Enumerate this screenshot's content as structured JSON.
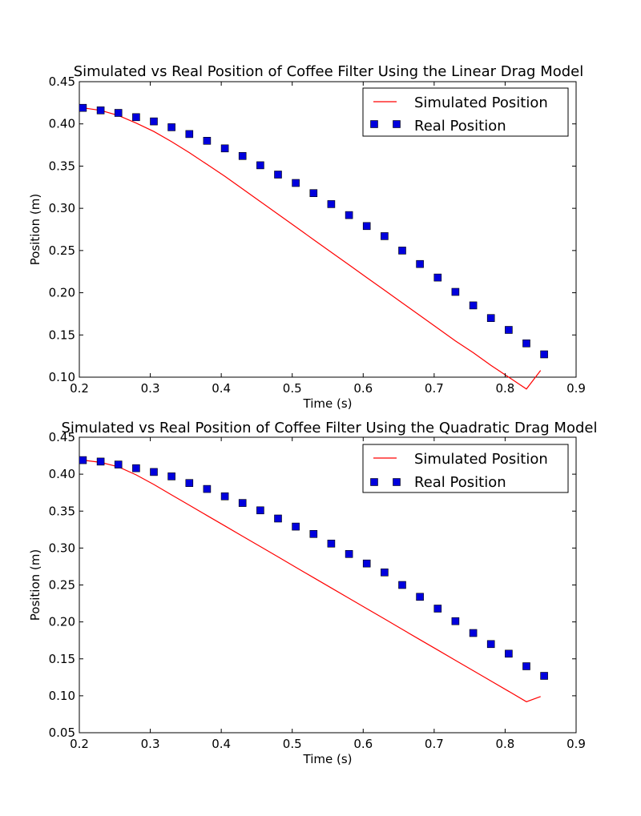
{
  "chart_data": [
    {
      "type": "line",
      "title": "Simulated vs Real Position of Coffee Filter Using the Linear Drag Model",
      "xlabel": "Time (s)",
      "ylabel": "Position (m)",
      "xlim": [
        0.2,
        0.9
      ],
      "ylim": [
        0.1,
        0.45
      ],
      "xticks": [
        "0.2",
        "0.3",
        "0.4",
        "0.5",
        "0.6",
        "0.7",
        "0.8",
        "0.9"
      ],
      "yticks": [
        "0.10",
        "0.15",
        "0.20",
        "0.25",
        "0.30",
        "0.35",
        "0.40",
        "0.45"
      ],
      "legend_position": "top-right",
      "grid": false,
      "series": [
        {
          "name": "Simulated Position",
          "style": "line",
          "color": "#ff0000",
          "x": [
            0.205,
            0.23,
            0.255,
            0.28,
            0.305,
            0.33,
            0.355,
            0.38,
            0.405,
            0.43,
            0.455,
            0.48,
            0.505,
            0.53,
            0.555,
            0.58,
            0.605,
            0.63,
            0.655,
            0.68,
            0.705,
            0.73,
            0.755,
            0.78,
            0.805,
            0.83,
            0.85
          ],
          "y": [
            0.419,
            0.416,
            0.41,
            0.401,
            0.391,
            0.379,
            0.366,
            0.352,
            0.338,
            0.323,
            0.308,
            0.293,
            0.278,
            0.263,
            0.248,
            0.233,
            0.218,
            0.203,
            0.188,
            0.173,
            0.158,
            0.143,
            0.129,
            0.114,
            0.1,
            0.086,
            0.108
          ]
        },
        {
          "name": "Real Position",
          "style": "square-markers",
          "color": "#0000dd",
          "x": [
            0.205,
            0.23,
            0.255,
            0.28,
            0.305,
            0.33,
            0.355,
            0.38,
            0.405,
            0.43,
            0.455,
            0.48,
            0.505,
            0.53,
            0.555,
            0.58,
            0.605,
            0.63,
            0.655,
            0.68,
            0.705,
            0.73,
            0.755,
            0.78,
            0.805,
            0.83,
            0.855
          ],
          "y": [
            0.419,
            0.416,
            0.413,
            0.408,
            0.403,
            0.396,
            0.388,
            0.38,
            0.371,
            0.362,
            0.351,
            0.34,
            0.33,
            0.318,
            0.305,
            0.292,
            0.279,
            0.267,
            0.25,
            0.234,
            0.218,
            0.201,
            0.185,
            0.17,
            0.156,
            0.14,
            0.127
          ]
        }
      ]
    },
    {
      "type": "line",
      "title": "Simulated vs Real Position of Coffee Filter Using the Quadratic Drag Model",
      "xlabel": "Time (s)",
      "ylabel": "Position (m)",
      "xlim": [
        0.2,
        0.9
      ],
      "ylim": [
        0.05,
        0.45
      ],
      "xticks": [
        "0.2",
        "0.3",
        "0.4",
        "0.5",
        "0.6",
        "0.7",
        "0.8",
        "0.9"
      ],
      "yticks": [
        "0.05",
        "0.10",
        "0.15",
        "0.20",
        "0.25",
        "0.30",
        "0.35",
        "0.40",
        "0.45"
      ],
      "legend_position": "top-right",
      "grid": false,
      "series": [
        {
          "name": "Simulated Position",
          "style": "line",
          "color": "#ff0000",
          "x": [
            0.205,
            0.23,
            0.255,
            0.28,
            0.305,
            0.33,
            0.355,
            0.38,
            0.405,
            0.43,
            0.455,
            0.48,
            0.505,
            0.53,
            0.555,
            0.58,
            0.605,
            0.63,
            0.655,
            0.68,
            0.705,
            0.73,
            0.755,
            0.78,
            0.805,
            0.83,
            0.85
          ],
          "y": [
            0.419,
            0.416,
            0.41,
            0.399,
            0.386,
            0.372,
            0.358,
            0.344,
            0.33,
            0.316,
            0.302,
            0.288,
            0.274,
            0.26,
            0.246,
            0.232,
            0.218,
            0.204,
            0.19,
            0.176,
            0.162,
            0.148,
            0.134,
            0.12,
            0.106,
            0.092,
            0.099
          ]
        },
        {
          "name": "Real Position",
          "style": "square-markers",
          "color": "#0000dd",
          "x": [
            0.205,
            0.23,
            0.255,
            0.28,
            0.305,
            0.33,
            0.355,
            0.38,
            0.405,
            0.43,
            0.455,
            0.48,
            0.505,
            0.53,
            0.555,
            0.58,
            0.605,
            0.63,
            0.655,
            0.68,
            0.705,
            0.73,
            0.755,
            0.78,
            0.805,
            0.83,
            0.855
          ],
          "y": [
            0.419,
            0.417,
            0.413,
            0.408,
            0.403,
            0.397,
            0.388,
            0.38,
            0.37,
            0.361,
            0.351,
            0.34,
            0.329,
            0.319,
            0.306,
            0.292,
            0.279,
            0.267,
            0.25,
            0.234,
            0.218,
            0.201,
            0.185,
            0.17,
            0.157,
            0.14,
            0.127
          ]
        }
      ]
    }
  ]
}
